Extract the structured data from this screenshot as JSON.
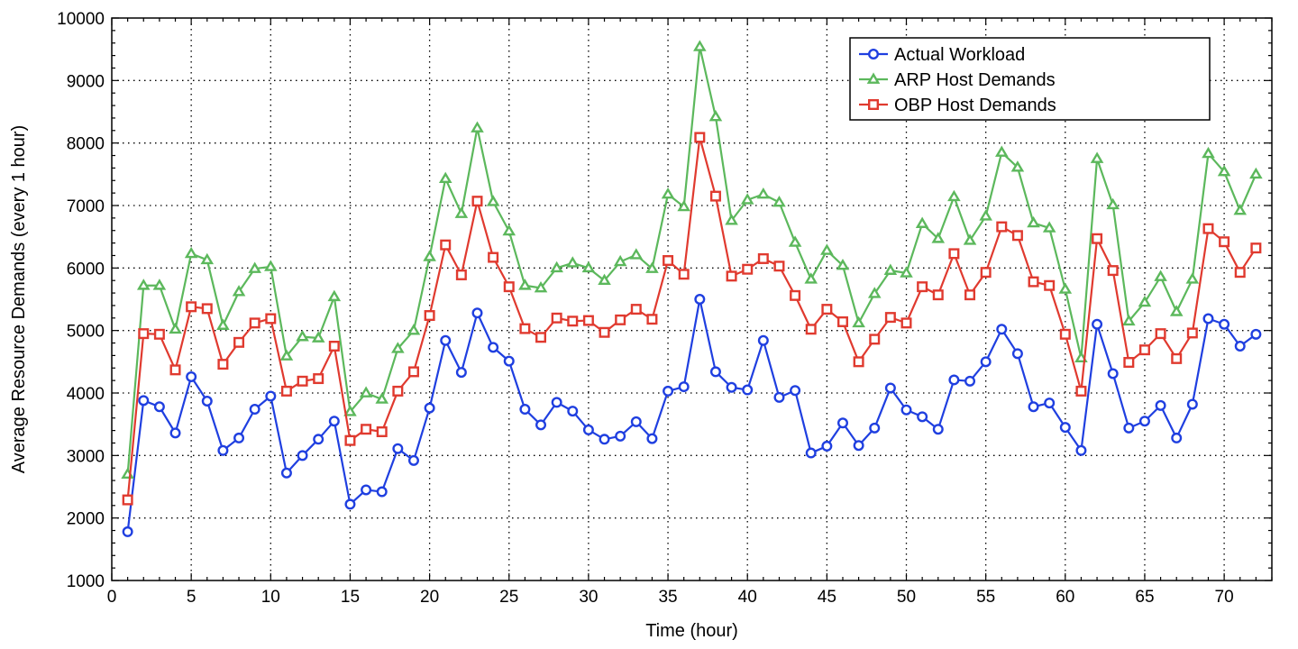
{
  "chart_data": {
    "type": "line",
    "title": "",
    "xlabel": "Time (hour)",
    "ylabel": "Average Resource Demands (every 1 hour)",
    "xlim": [
      0,
      73
    ],
    "ylim": [
      1000,
      10000
    ],
    "xticks": [
      0,
      5,
      10,
      15,
      20,
      25,
      30,
      35,
      40,
      45,
      50,
      55,
      60,
      65,
      70
    ],
    "yticks": [
      1000,
      2000,
      3000,
      4000,
      5000,
      6000,
      7000,
      8000,
      9000,
      10000
    ],
    "grid": true,
    "legend_position": "top-right",
    "x": [
      1,
      2,
      3,
      4,
      5,
      6,
      7,
      8,
      9,
      10,
      11,
      12,
      13,
      14,
      15,
      16,
      17,
      18,
      19,
      20,
      21,
      22,
      23,
      24,
      25,
      26,
      27,
      28,
      29,
      30,
      31,
      32,
      33,
      34,
      35,
      36,
      37,
      38,
      39,
      40,
      41,
      42,
      43,
      44,
      45,
      46,
      47,
      48,
      49,
      50,
      51,
      52,
      53,
      54,
      55,
      56,
      57,
      58,
      59,
      60,
      61,
      62,
      63,
      64,
      65,
      66,
      67,
      68,
      69,
      70,
      71,
      72
    ],
    "series": [
      {
        "name": "Actual Workload",
        "color": "#1f3fe0",
        "marker": "circle",
        "values": [
          1780,
          3880,
          3780,
          3360,
          4260,
          3870,
          3080,
          3280,
          3740,
          3950,
          2720,
          3000,
          3260,
          3550,
          2220,
          2450,
          2420,
          3110,
          2920,
          3760,
          4840,
          4330,
          5280,
          4730,
          4510,
          3740,
          3490,
          3850,
          3710,
          3410,
          3260,
          3310,
          3540,
          3270,
          4030,
          4100,
          5500,
          4340,
          4090,
          4050,
          4840,
          3930,
          4040,
          3040,
          3150,
          3520,
          3160,
          3440,
          4080,
          3730,
          3620,
          3420,
          4210,
          4190,
          4500,
          5020,
          4630,
          3780,
          3840,
          3450,
          3080,
          5100,
          4310,
          3440,
          3550,
          3800,
          3280,
          3820,
          5190,
          5100,
          4750,
          4940
        ]
      },
      {
        "name": "ARP Host Demands",
        "color": "#5cb85c",
        "marker": "triangle",
        "values": [
          2700,
          5720,
          5720,
          5020,
          6230,
          6130,
          5080,
          5620,
          5990,
          6020,
          4590,
          4900,
          4880,
          5540,
          3700,
          4000,
          3900,
          4710,
          5000,
          6180,
          7430,
          6870,
          8240,
          7060,
          6590,
          5720,
          5680,
          6000,
          6080,
          6000,
          5800,
          6100,
          6210,
          5990,
          7180,
          6980,
          9540,
          8420,
          6760,
          7090,
          7180,
          7050,
          6410,
          5820,
          6280,
          6040,
          5120,
          5590,
          5960,
          5920,
          6710,
          6470,
          7140,
          6440,
          6830,
          7850,
          7610,
          6720,
          6640,
          5660,
          4560,
          7750,
          7010,
          5150,
          5450,
          5860,
          5300,
          5820,
          7830,
          7540,
          6920,
          7500
        ]
      },
      {
        "name": "OBP Host Demands",
        "color": "#e03a2f",
        "marker": "square",
        "values": [
          2290,
          4950,
          4940,
          4370,
          5380,
          5350,
          4460,
          4810,
          5120,
          5190,
          4030,
          4190,
          4230,
          4750,
          3240,
          3420,
          3380,
          4030,
          4340,
          5240,
          6370,
          5890,
          7070,
          6170,
          5700,
          5030,
          4890,
          5200,
          5150,
          5160,
          4970,
          5170,
          5340,
          5180,
          6120,
          5900,
          8090,
          7150,
          5870,
          5980,
          6150,
          6030,
          5560,
          5020,
          5340,
          5140,
          4500,
          4860,
          5210,
          5120,
          5700,
          5570,
          6230,
          5570,
          5930,
          6660,
          6520,
          5780,
          5720,
          4940,
          4030,
          6470,
          5960,
          4490,
          4690,
          4950,
          4550,
          4960,
          6630,
          6420,
          5930,
          6320
        ]
      }
    ]
  }
}
